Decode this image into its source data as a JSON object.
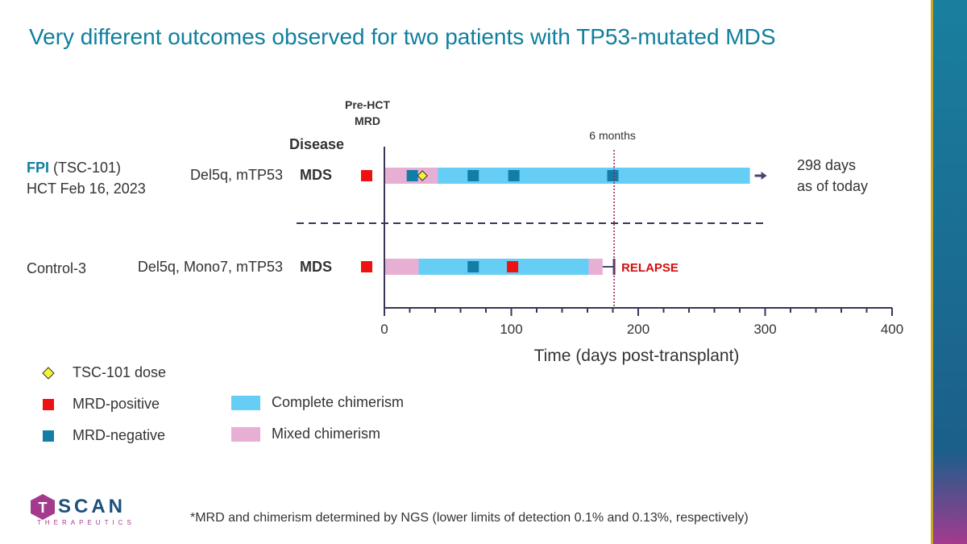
{
  "title": "Very different outcomes observed for two patients with TP53-mutated MDS",
  "headers": {
    "pre_hct": "Pre-HCT",
    "pre_hct_2": "MRD",
    "disease": "Disease"
  },
  "patients": [
    {
      "label": "FPI",
      "label_rest": " (TSC-101)",
      "line2": "HCT Feb 16, 2023",
      "mutations": "Del5q, mTP53",
      "disease": "MDS"
    },
    {
      "label": "Control-3",
      "mutations": "Del5q, Mono7, mTP53",
      "disease": "MDS"
    }
  ],
  "side_note": {
    "line1": "298 days",
    "line2": "as of today"
  },
  "relapse_label": "RELAPSE",
  "six_months_label": "6 months",
  "legend": {
    "dose": "TSC-101 dose",
    "mrd_pos": "MRD-positive",
    "mrd_neg": "MRD-negative",
    "complete": "Complete chimerism",
    "mixed": "Mixed chimerism"
  },
  "footnote": "*MRD and chimerism determined by NGS (lower limits of detection 0.1% and 0.13%, respectively)",
  "logo": {
    "word": "SCAN",
    "letter": "T",
    "sub": "THERAPEUTICS"
  },
  "colors": {
    "complete": "#66cdf5",
    "mixed": "#e8afd4",
    "mrd_pos": "#ee1111",
    "mrd_neg": "#127ea8",
    "dose": "#f3f33a",
    "axis": "#3b3456",
    "six_months": "#9b1b52"
  },
  "chart_data": {
    "type": "timeline",
    "xlabel": "Time (days post-transplant)",
    "xlim": [
      0,
      400
    ],
    "xticks": [
      0,
      100,
      200,
      300,
      400
    ],
    "minor_tick_step": 20,
    "reference_line": {
      "x": 181,
      "label": "6 months"
    },
    "series": [
      {
        "name": "FPI",
        "segments": [
          {
            "type": "mixed",
            "start": 0,
            "end": 42
          },
          {
            "type": "complete",
            "start": 42,
            "end": 288
          }
        ],
        "pre_hct_mrd": "positive",
        "mrd_points": [
          {
            "x": 22,
            "status": "negative"
          },
          {
            "x": 70,
            "status": "negative"
          },
          {
            "x": 102,
            "status": "negative"
          },
          {
            "x": 180,
            "status": "negative"
          }
        ],
        "dose_points": [
          30
        ],
        "end": "ongoing"
      },
      {
        "name": "Control-3",
        "segments": [
          {
            "type": "mixed",
            "start": 0,
            "end": 27
          },
          {
            "type": "complete",
            "start": 27,
            "end": 161
          },
          {
            "type": "mixed",
            "start": 161,
            "end": 172
          }
        ],
        "pre_hct_mrd": "positive",
        "mrd_points": [
          {
            "x": 70,
            "status": "negative"
          },
          {
            "x": 101,
            "status": "positive"
          }
        ],
        "dose_points": [],
        "end": "relapse",
        "end_x": 181
      }
    ]
  }
}
